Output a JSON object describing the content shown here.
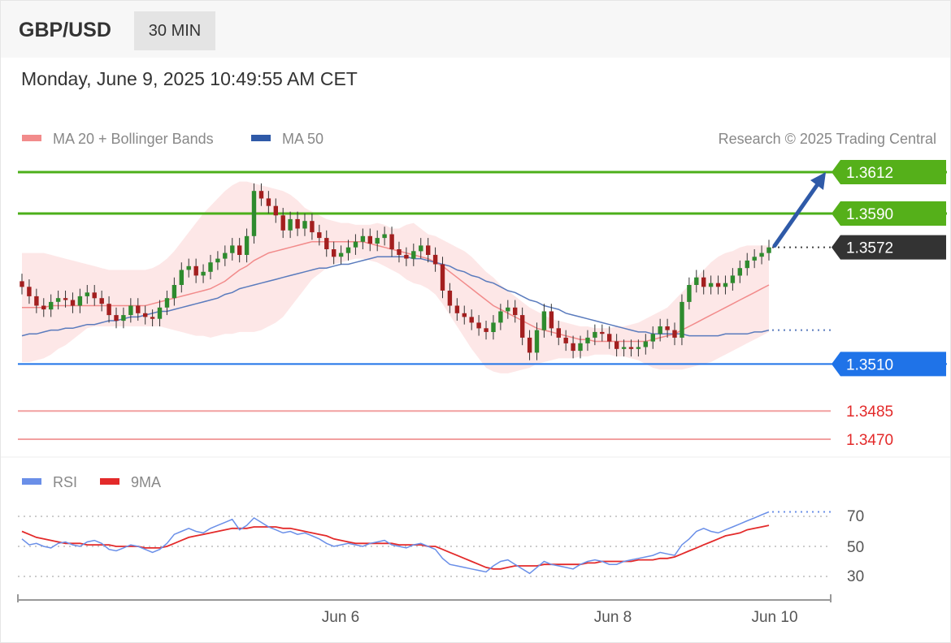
{
  "header": {
    "pair": "GBP/USD",
    "timeframe": "30 MIN",
    "datetime": "Monday, June 9, 2025 10:49:55 AM CET"
  },
  "price_panel": {
    "legend": [
      {
        "label": "MA 20 + Bollinger Bands",
        "color": "#f28b8b"
      },
      {
        "label": "MA 50",
        "color": "#2f5aa8"
      }
    ],
    "credit": "Research © 2025 Trading Central"
  },
  "levels": [
    {
      "value": "1.3612",
      "kind": "resistance",
      "color": "#4caf1a"
    },
    {
      "value": "1.3590",
      "kind": "resistance",
      "color": "#4caf1a"
    },
    {
      "value": "1.3572",
      "kind": "last-price",
      "color": "#333333"
    },
    {
      "value": "1.3510",
      "kind": "support",
      "color": "#1f73e8"
    },
    {
      "value": "1.3485",
      "kind": "support",
      "color": "#e32a2a"
    },
    {
      "value": "1.3470",
      "kind": "support",
      "color": "#e32a2a"
    }
  ],
  "rsi_panel": {
    "legend": [
      {
        "label": "RSI",
        "color": "#6a8fe8"
      },
      {
        "label": "9MA",
        "color": "#e32a2a"
      }
    ],
    "levels": [
      "70",
      "50",
      "30"
    ]
  },
  "x_axis": {
    "labels": [
      "Jun 6",
      "Jun 8",
      "Jun 10"
    ]
  },
  "chart_data": [
    {
      "type": "candlestick",
      "title": "GBP/USD 30 MIN",
      "ylim": [
        1.346,
        1.362
      ],
      "levels": [
        1.3612,
        1.359,
        1.3572,
        1.351,
        1.3485,
        1.347
      ],
      "close": [
        1.3551,
        1.3546,
        1.3541,
        1.3539,
        1.3543,
        1.3545,
        1.3544,
        1.3541,
        1.3546,
        1.3548,
        1.3545,
        1.3542,
        1.3536,
        1.3533,
        1.3536,
        1.3541,
        1.3537,
        1.3535,
        1.3534,
        1.354,
        1.3545,
        1.3552,
        1.356,
        1.3562,
        1.3557,
        1.3559,
        1.3564,
        1.3566,
        1.3569,
        1.3573,
        1.3568,
        1.3578,
        1.3602,
        1.3598,
        1.3594,
        1.3589,
        1.3581,
        1.3587,
        1.3582,
        1.3586,
        1.358,
        1.3577,
        1.3571,
        1.3567,
        1.3569,
        1.3572,
        1.3575,
        1.3578,
        1.3574,
        1.3577,
        1.3579,
        1.3571,
        1.3568,
        1.3566,
        1.357,
        1.3573,
        1.3568,
        1.3563,
        1.3549,
        1.3541,
        1.3537,
        1.3535,
        1.3532,
        1.3529,
        1.3527,
        1.3532,
        1.3538,
        1.354,
        1.3536,
        1.3524,
        1.3516,
        1.3528,
        1.3538,
        1.3529,
        1.3524,
        1.3521,
        1.3517,
        1.3521,
        1.3524,
        1.3527,
        1.3526,
        1.3522,
        1.3518,
        1.3519,
        1.3518,
        1.3519,
        1.3522,
        1.3526,
        1.353,
        1.3528,
        1.3524,
        1.3543,
        1.3552,
        1.3556,
        1.3551,
        1.3553,
        1.3551,
        1.3553,
        1.3557,
        1.3561,
        1.3565,
        1.3567,
        1.3569,
        1.3572
      ],
      "ma20": [
        1.354,
        1.354,
        1.354,
        1.354,
        1.3541,
        1.3541,
        1.3541,
        1.3541,
        1.3541,
        1.3541,
        1.3541,
        1.3541,
        1.3541,
        1.3541,
        1.3541,
        1.3541,
        1.3541,
        1.3541,
        1.3542,
        1.3543,
        1.3544,
        1.3545,
        1.3546,
        1.3547,
        1.3548,
        1.3549,
        1.355,
        1.3552,
        1.3554,
        1.3557,
        1.356,
        1.3562,
        1.3565,
        1.3567,
        1.3569,
        1.357,
        1.3571,
        1.3572,
        1.3573,
        1.3574,
        1.3575,
        1.3575,
        1.3575,
        1.3575,
        1.3575,
        1.3575,
        1.3575,
        1.3575,
        1.3574,
        1.3573,
        1.3572,
        1.3571,
        1.357,
        1.3569,
        1.3568,
        1.3567,
        1.3566,
        1.3564,
        1.3562,
        1.3559,
        1.3556,
        1.3553,
        1.355,
        1.3547,
        1.3544,
        1.3541,
        1.3539,
        1.3537,
        1.3535,
        1.3533,
        1.3531,
        1.3529,
        1.3528,
        1.3527,
        1.3526,
        1.3525,
        1.3524,
        1.3523,
        1.3523,
        1.3522,
        1.3522,
        1.3522,
        1.3522,
        1.3522,
        1.3522,
        1.3522,
        1.3522,
        1.3523,
        1.3524,
        1.3525,
        1.3526,
        1.3528,
        1.353,
        1.3532,
        1.3534,
        1.3536,
        1.3538,
        1.354,
        1.3542,
        1.3544,
        1.3546,
        1.3548,
        1.355,
        1.3552
      ],
      "bb_upper": [
        1.3569,
        1.3569,
        1.3569,
        1.3569,
        1.3568,
        1.3567,
        1.3566,
        1.3565,
        1.3564,
        1.3563,
        1.3562,
        1.3561,
        1.356,
        1.356,
        1.356,
        1.356,
        1.356,
        1.356,
        1.3561,
        1.3563,
        1.3566,
        1.357,
        1.3575,
        1.358,
        1.3585,
        1.359,
        1.3594,
        1.3598,
        1.3602,
        1.3605,
        1.3607,
        1.3607,
        1.3606,
        1.3605,
        1.3604,
        1.3603,
        1.3602,
        1.36,
        1.3597,
        1.3593,
        1.3591,
        1.3589,
        1.3587,
        1.3586,
        1.3585,
        1.3585,
        1.3584,
        1.3584,
        1.3584,
        1.3585,
        1.3584,
        1.3582,
        1.3582,
        1.3584,
        1.3585,
        1.3582,
        1.3579,
        1.3578,
        1.3576,
        1.3574,
        1.3572,
        1.357,
        1.3567,
        1.3563,
        1.3559,
        1.3556,
        1.3552,
        1.3549,
        1.3546,
        1.3543,
        1.354,
        1.3538,
        1.3536,
        1.3534,
        1.3533,
        1.3532,
        1.3531,
        1.353,
        1.353,
        1.3529,
        1.3529,
        1.3529,
        1.353,
        1.353,
        1.3531,
        1.3532,
        1.3534,
        1.3536,
        1.3538,
        1.354,
        1.3544,
        1.3548,
        1.3552,
        1.3556,
        1.356,
        1.3564,
        1.3567,
        1.3569,
        1.357,
        1.3572,
        1.3573,
        1.3573,
        1.3573,
        1.3573
      ],
      "bb_lower": [
        1.3511,
        1.3511,
        1.3512,
        1.3513,
        1.3515,
        1.3518,
        1.352,
        1.3523,
        1.3526,
        1.3529,
        1.353,
        1.353,
        1.353,
        1.353,
        1.353,
        1.353,
        1.353,
        1.353,
        1.353,
        1.353,
        1.3529,
        1.3528,
        1.3527,
        1.3526,
        1.3525,
        1.3525,
        1.3524,
        1.3525,
        1.3526,
        1.3526,
        1.3527,
        1.3527,
        1.3527,
        1.3528,
        1.353,
        1.3532,
        1.3535,
        1.354,
        1.3545,
        1.355,
        1.3555,
        1.3558,
        1.3561,
        1.3563,
        1.3564,
        1.3565,
        1.3566,
        1.3566,
        1.3565,
        1.3564,
        1.3562,
        1.356,
        1.3558,
        1.3555,
        1.3553,
        1.3552,
        1.355,
        1.3547,
        1.3542,
        1.3536,
        1.353,
        1.3524,
        1.3518,
        1.3513,
        1.3508,
        1.3506,
        1.3505,
        1.3505,
        1.3506,
        1.3507,
        1.3508,
        1.351,
        1.3511,
        1.3512,
        1.3513,
        1.3513,
        1.3513,
        1.3514,
        1.3514,
        1.3515,
        1.3515,
        1.3515,
        1.3514,
        1.3514,
        1.3513,
        1.3512,
        1.351,
        1.3508,
        1.3507,
        1.3507,
        1.3507,
        1.3507,
        1.3508,
        1.3509,
        1.351,
        1.3511,
        1.3513,
        1.3515,
        1.3517,
        1.3519,
        1.3521,
        1.3523,
        1.3525,
        1.3527
      ],
      "ma50": [
        1.3525,
        1.3526,
        1.3526,
        1.3527,
        1.3528,
        1.3528,
        1.3529,
        1.3529,
        1.353,
        1.3531,
        1.3531,
        1.3532,
        1.3533,
        1.3533,
        1.3534,
        1.3535,
        1.3535,
        1.3536,
        1.3537,
        1.3538,
        1.3538,
        1.3539,
        1.354,
        1.3541,
        1.3542,
        1.3543,
        1.3544,
        1.3545,
        1.3547,
        1.3548,
        1.355,
        1.3551,
        1.3552,
        1.3553,
        1.3554,
        1.3555,
        1.3556,
        1.3557,
        1.3558,
        1.3559,
        1.356,
        1.3561,
        1.3561,
        1.3562,
        1.3563,
        1.3563,
        1.3564,
        1.3565,
        1.3566,
        1.3567,
        1.3567,
        1.3567,
        1.3567,
        1.3567,
        1.3566,
        1.3566,
        1.3565,
        1.3564,
        1.3563,
        1.3562,
        1.356,
        1.3559,
        1.3557,
        1.3556,
        1.3554,
        1.3553,
        1.3551,
        1.3549,
        1.3548,
        1.3546,
        1.3544,
        1.3543,
        1.3541,
        1.354,
        1.3539,
        1.3537,
        1.3536,
        1.3535,
        1.3534,
        1.3533,
        1.3532,
        1.3531,
        1.353,
        1.3529,
        1.3528,
        1.3527,
        1.3527,
        1.3526,
        1.3526,
        1.3526,
        1.3526,
        1.3526,
        1.3525,
        1.3525,
        1.3525,
        1.3525,
        1.3525,
        1.3526,
        1.3526,
        1.3526,
        1.3526,
        1.3527,
        1.3527,
        1.3528
      ],
      "projection": {
        "from": 1.3572,
        "to": 1.3612
      }
    },
    {
      "type": "line",
      "title": "RSI",
      "ylim": [
        20,
        80
      ],
      "yticks": [
        70,
        50,
        30
      ],
      "series": [
        {
          "name": "RSI",
          "values": [
            55,
            51,
            52,
            50,
            49,
            52,
            53,
            51,
            50,
            53,
            54,
            52,
            48,
            47,
            49,
            51,
            50,
            48,
            46,
            48,
            52,
            58,
            60,
            62,
            60,
            59,
            62,
            64,
            66,
            68,
            61,
            64,
            69,
            66,
            63,
            61,
            59,
            60,
            58,
            59,
            57,
            55,
            52,
            50,
            51,
            52,
            51,
            50,
            52,
            53,
            54,
            51,
            50,
            49,
            51,
            52,
            50,
            48,
            42,
            38,
            37,
            36,
            35,
            34,
            33,
            37,
            40,
            41,
            38,
            35,
            32,
            36,
            40,
            38,
            37,
            36,
            35,
            38,
            40,
            41,
            40,
            38,
            38,
            40,
            41,
            42,
            43,
            44,
            46,
            45,
            44,
            51,
            55,
            60,
            62,
            60,
            59,
            61,
            63,
            65,
            67,
            69,
            71,
            73
          ]
        },
        {
          "name": "9MA",
          "values": [
            60,
            58,
            56,
            55,
            54,
            53,
            52,
            52,
            52,
            51,
            51,
            51,
            51,
            50,
            50,
            50,
            50,
            49,
            49,
            49,
            50,
            52,
            54,
            56,
            57,
            58,
            59,
            60,
            61,
            62,
            62,
            62,
            63,
            63,
            63,
            63,
            62,
            62,
            61,
            60,
            59,
            58,
            57,
            55,
            54,
            53,
            52,
            52,
            52,
            52,
            52,
            52,
            51,
            51,
            51,
            51,
            50,
            50,
            48,
            46,
            44,
            42,
            40,
            38,
            36,
            35,
            35,
            36,
            37,
            37,
            37,
            37,
            38,
            38,
            38,
            38,
            38,
            38,
            39,
            39,
            40,
            40,
            40,
            40,
            40,
            41,
            41,
            41,
            42,
            42,
            43,
            45,
            47,
            49,
            51,
            53,
            55,
            57,
            58,
            59,
            61,
            62,
            63,
            64
          ]
        }
      ]
    }
  ]
}
